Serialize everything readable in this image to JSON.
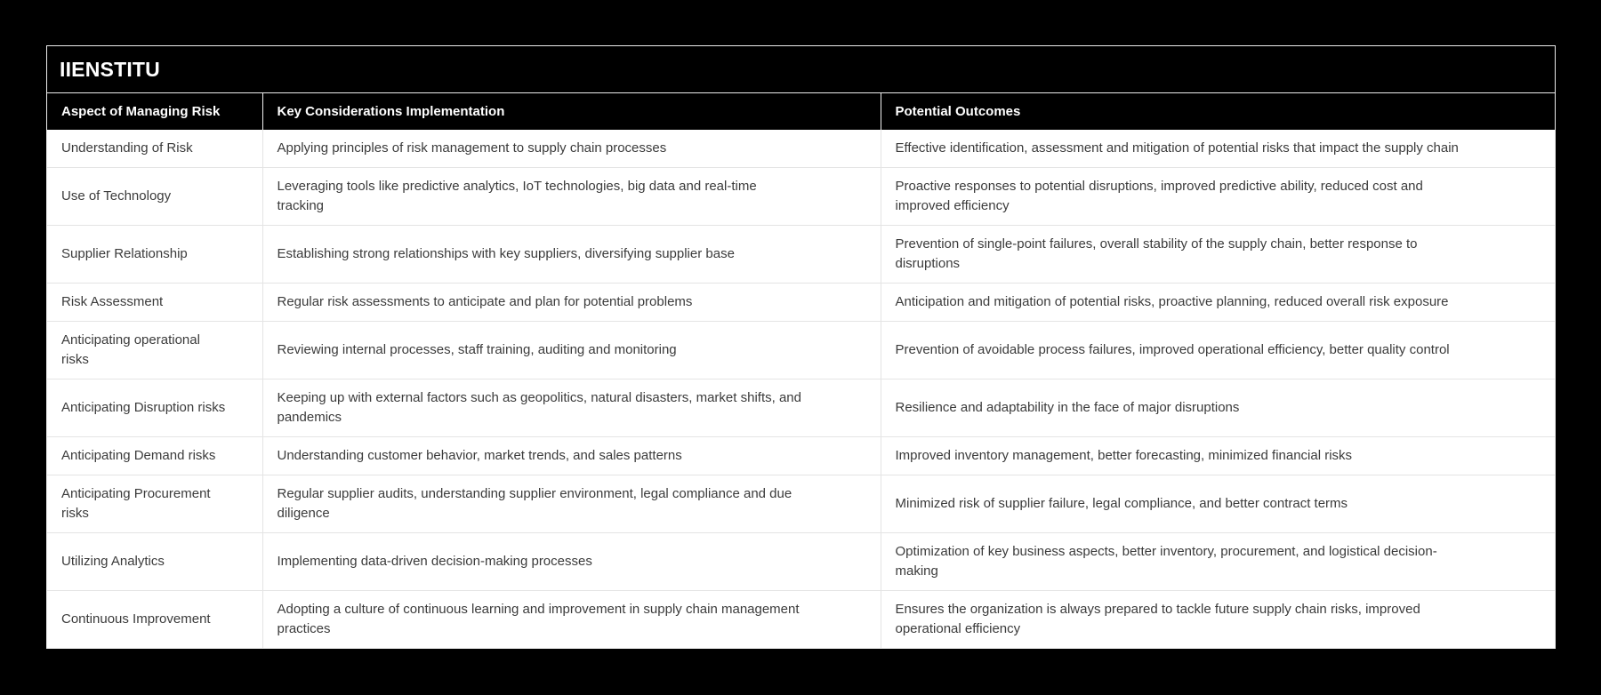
{
  "chart_data": {
    "type": "table",
    "title": "IIENSTITU",
    "columns": [
      "Aspect of Managing Risk",
      "Key Considerations Implementation",
      "Potential Outcomes"
    ],
    "rows": [
      [
        "Understanding of Risk",
        "Applying principles of risk management to supply chain processes",
        "Effective identification, assessment and mitigation of potential risks that impact the supply chain"
      ],
      [
        "Use of Technology",
        "Leveraging tools like predictive analytics, IoT technologies, big data and real-time tracking",
        "Proactive responses to potential disruptions, improved predictive ability, reduced cost and improved efficiency"
      ],
      [
        "Supplier Relationship",
        "Establishing strong relationships with key suppliers, diversifying supplier base",
        "Prevention of single-point failures, overall stability of the supply chain, better response to disruptions"
      ],
      [
        "Risk Assessment",
        "Regular risk assessments to anticipate and plan for potential problems",
        "Anticipation and mitigation of potential risks, proactive planning, reduced overall risk exposure"
      ],
      [
        "Anticipating operational risks",
        "Reviewing internal processes, staff training, auditing and monitoring",
        "Prevention of avoidable process failures, improved operational efficiency, better quality control"
      ],
      [
        "Anticipating Disruption risks",
        "Keeping up with external factors such as geopolitics, natural disasters, market shifts, and pandemics",
        "Resilience and adaptability in the face of major disruptions"
      ],
      [
        "Anticipating Demand risks",
        "Understanding customer behavior, market trends, and sales patterns",
        "Improved inventory management, better forecasting, minimized financial risks"
      ],
      [
        "Anticipating Procurement risks",
        "Regular supplier audits, understanding supplier environment, legal compliance and due diligence",
        "Minimized risk of supplier failure, legal compliance, and better contract terms"
      ],
      [
        "Utilizing Analytics",
        "Implementing data-driven decision-making processes",
        "Optimization of key business aspects, better inventory, procurement, and logistical decision-making"
      ],
      [
        "Continuous Improvement",
        "Adopting a culture of continuous learning and improvement in supply chain management practices",
        "Ensures the organization is always prepared to tackle future supply chain risks, improved operational efficiency"
      ]
    ],
    "layout_hints": {
      "grid": "on",
      "header_style": "black background, white bold text",
      "body_style": "white background, dark gray text"
    }
  },
  "colors": {
    "page_bg": "#000000",
    "card_bg": "#000000",
    "outer_border": "#ededed",
    "header_bg": "#000000",
    "header_text": "#ffffff",
    "body_bg": "#ffffff",
    "body_text": "#3b3b3b",
    "grid_line": "#e4e4e4"
  }
}
